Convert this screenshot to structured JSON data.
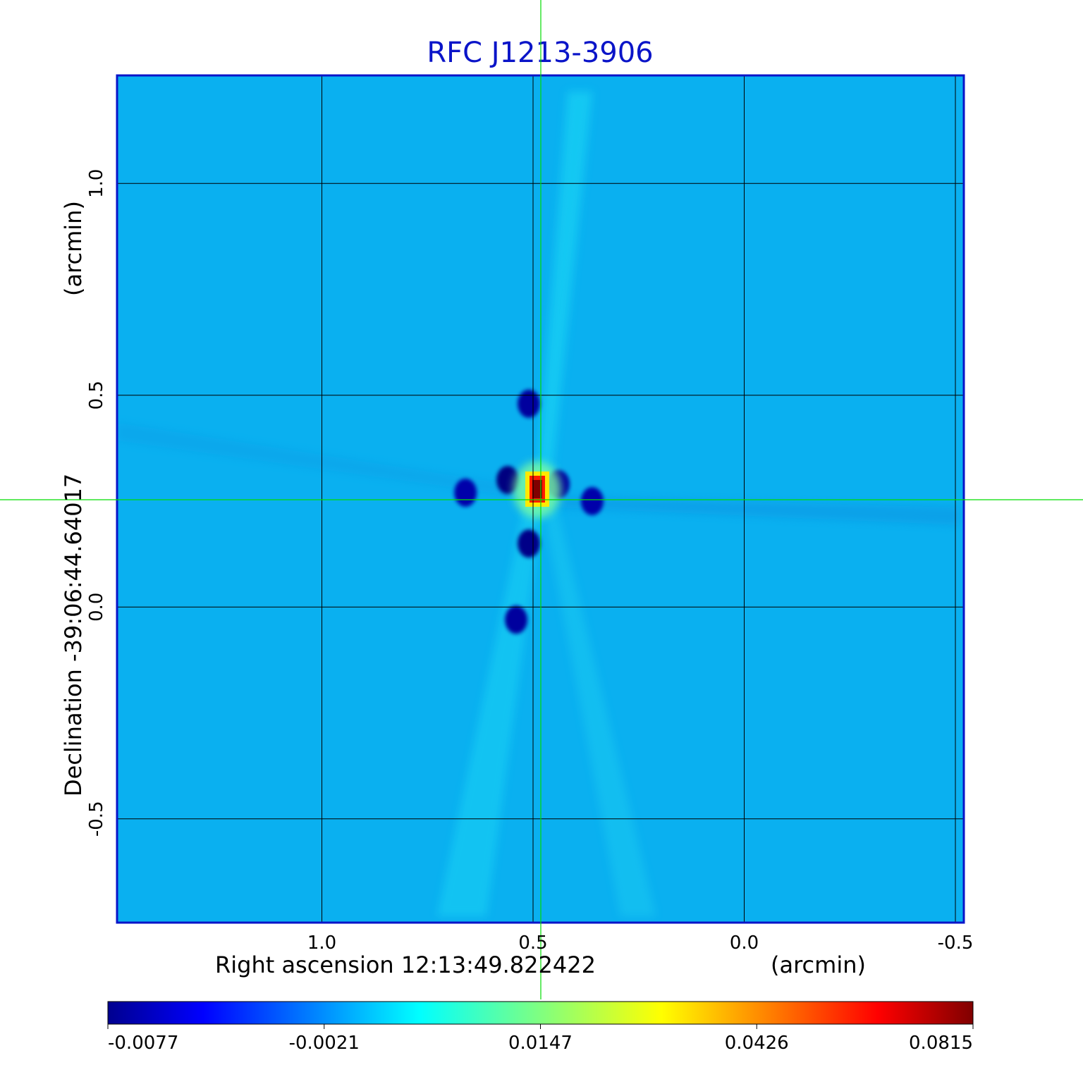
{
  "colors": {
    "title": "#0a14c8",
    "frame": "#0a14c8",
    "grid": "#000000",
    "crosshair": "#00dd00",
    "background_image": "#0ab0f0"
  },
  "chart_data": {
    "type": "heatmap",
    "title": "RFC J1213-3906",
    "xlabel": "Right ascension  12:13:49.822422",
    "xunit": "(arcmin)",
    "ylabel": "Declination  -39:06:44.64017",
    "yunit": "(arcmin)",
    "xlim": [
      1.485,
      -0.52
    ],
    "ylim": [
      -0.745,
      1.255
    ],
    "x_ticks": [
      1.0,
      0.5,
      0.0,
      -0.5
    ],
    "x_tick_labels": [
      "1.0",
      "0.5",
      "0.0",
      "-0.5"
    ],
    "y_ticks": [
      1.0,
      0.5,
      0.0,
      -0.5
    ],
    "y_tick_labels": [
      "1.0",
      "0.5",
      "0.0",
      "-0.5"
    ],
    "grid": true,
    "crosshair": {
      "x": 0.485,
      "y": 0.255
    },
    "peak": {
      "x": 0.49,
      "y": 0.28,
      "value": 0.0815
    },
    "colorbar": {
      "colormap": "jet",
      "min": -0.0077,
      "max": 0.0815,
      "tick_values": [
        -0.0077,
        -0.0021,
        0.0147,
        0.0426,
        0.0815
      ],
      "tick_labels": [
        "-0.0077",
        "-0.0021",
        "0.0147",
        "0.0426",
        "0.0815"
      ]
    },
    "features": [
      {
        "kind": "negative-blob",
        "x": 0.56,
        "y": 0.3,
        "value": -0.0077
      },
      {
        "kind": "negative-blob",
        "x": 0.51,
        "y": 0.15,
        "value": -0.007
      },
      {
        "kind": "negative-blob",
        "x": 0.54,
        "y": -0.03,
        "value": -0.005
      },
      {
        "kind": "negative-blob",
        "x": 0.44,
        "y": 0.29,
        "value": -0.005
      },
      {
        "kind": "negative-blob",
        "x": 0.51,
        "y": 0.48,
        "value": -0.005
      },
      {
        "kind": "negative-blob",
        "x": 0.36,
        "y": 0.25,
        "value": -0.004
      },
      {
        "kind": "negative-blob",
        "x": 0.66,
        "y": 0.27,
        "value": -0.004
      }
    ]
  }
}
